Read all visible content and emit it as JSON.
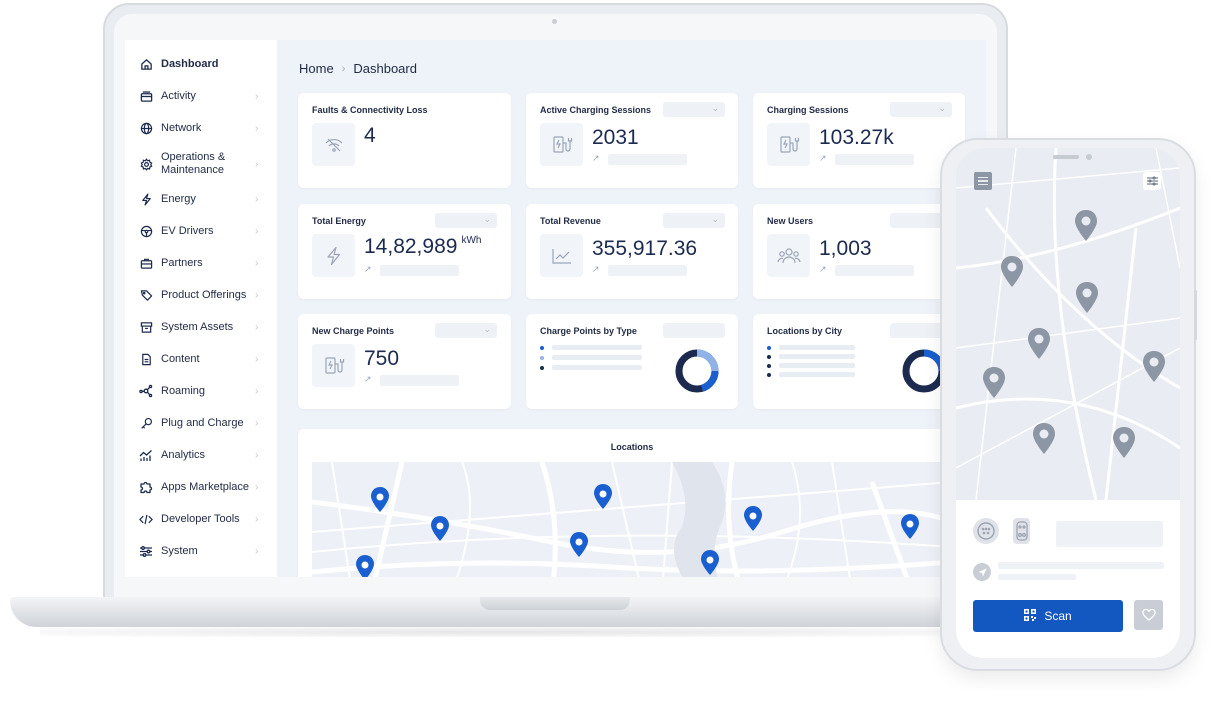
{
  "sidebar": {
    "items": [
      {
        "label": "Dashboard",
        "icon": "home-icon"
      },
      {
        "label": "Activity",
        "icon": "activity-icon"
      },
      {
        "label": "Network",
        "icon": "globe-icon"
      },
      {
        "label": "Operations &\nMaintenance",
        "icon": "gear-icon"
      },
      {
        "label": "Energy",
        "icon": "lightning-icon"
      },
      {
        "label": "EV Drivers",
        "icon": "steering-wheel-icon"
      },
      {
        "label": "Partners",
        "icon": "briefcase-icon"
      },
      {
        "label": "Product Offerings",
        "icon": "tag-icon"
      },
      {
        "label": "System Assets",
        "icon": "archive-icon"
      },
      {
        "label": "Content",
        "icon": "document-icon"
      },
      {
        "label": "Roaming",
        "icon": "roaming-icon"
      },
      {
        "label": "Plug and Charge",
        "icon": "key-icon"
      },
      {
        "label": "Analytics",
        "icon": "analytics-icon"
      },
      {
        "label": "Apps Marketplace",
        "icon": "puzzle-icon"
      },
      {
        "label": "Developer Tools",
        "icon": "code-icon"
      },
      {
        "label": "System",
        "icon": "sliders-icon"
      }
    ]
  },
  "breadcrumb": {
    "home": "Home",
    "current": "Dashboard"
  },
  "cards": {
    "faults": {
      "title": "Faults & Connectivity Loss",
      "value": "4"
    },
    "active_sessions": {
      "title": "Active Charging Sessions",
      "value": "2031"
    },
    "sessions": {
      "title": "Charging Sessions",
      "value": "103.27k"
    },
    "energy": {
      "title": "Total Energy",
      "value": "14,82,989",
      "unit": "kWh"
    },
    "revenue": {
      "title": "Total Revenue",
      "value": "355,917.36"
    },
    "new_users": {
      "title": "New Users",
      "value": "1,003"
    },
    "new_points": {
      "title": "New Charge Points",
      "value": "750"
    },
    "points_by_type": {
      "title": "Charge Points by Type"
    },
    "locations_by_city": {
      "title": "Locations by City"
    },
    "locations": {
      "title": "Locations"
    }
  },
  "phone": {
    "scan_label": "Scan"
  },
  "colors": {
    "accent": "#1357c0",
    "navy": "#1b2a4e",
    "pin_blue": "#1a5fcf",
    "pin_gray": "#8d96a4"
  }
}
